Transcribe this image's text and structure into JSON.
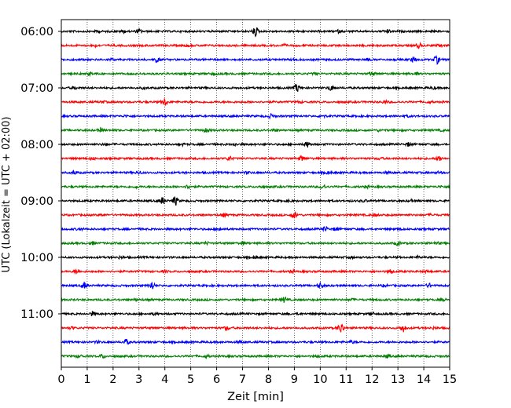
{
  "chart_data": {
    "type": "line",
    "title": "",
    "xlabel": "Zeit  [min]",
    "ylabel": "UTC (Lokalzeit = UTC + 02:00)",
    "xlim": [
      0,
      15
    ],
    "xticks": [
      0,
      1,
      2,
      3,
      4,
      5,
      6,
      7,
      8,
      9,
      10,
      11,
      12,
      13,
      14,
      15
    ],
    "xtick_labels": [
      "0",
      "1",
      "2",
      "3",
      "4",
      "5",
      "6",
      "7",
      "8",
      "9",
      "10",
      "11",
      "12",
      "13",
      "14",
      "15"
    ],
    "row_interval_min": 15,
    "first_row": "06:00",
    "ytick_labels": [
      "06:00",
      "07:00",
      "08:00",
      "09:00",
      "10:00",
      "11:00"
    ],
    "grid": {
      "x": true,
      "x_style": "dotted",
      "y": false
    },
    "color_cycle": [
      "#000000",
      "#ff0000",
      "#0000ff",
      "#008000"
    ],
    "series": [
      {
        "start": "06:00",
        "color": "#000000",
        "bursts": [
          [
            1.4,
            1.0
          ],
          [
            2.4,
            1.5
          ],
          [
            3.0,
            2.0
          ],
          [
            7.5,
            5.5
          ],
          [
            10.7,
            1.3
          ],
          [
            12.6,
            1.8
          ]
        ]
      },
      {
        "start": "06:15",
        "color": "#ff0000",
        "bursts": [
          [
            1.3,
            1.2
          ],
          [
            4.9,
            0.9
          ],
          [
            8.6,
            0.8
          ],
          [
            13.8,
            3.2
          ],
          [
            14.6,
            1.0
          ]
        ]
      },
      {
        "start": "06:30",
        "color": "#0000ff",
        "bursts": [
          [
            1.9,
            1.2
          ],
          [
            3.7,
            2.8
          ],
          [
            9.0,
            1.0
          ],
          [
            11.8,
            1.2
          ],
          [
            13.6,
            2.8
          ],
          [
            14.5,
            4.8
          ]
        ]
      },
      {
        "start": "06:45",
        "color": "#008000",
        "bursts": [
          [
            1.1,
            1.5
          ],
          [
            5.9,
            1.0
          ],
          [
            9.8,
            1.0
          ],
          [
            12.0,
            2.5
          ],
          [
            13.7,
            1.3
          ]
        ]
      },
      {
        "start": "07:00",
        "color": "#000000",
        "bursts": [
          [
            0.5,
            1.8
          ],
          [
            3.2,
            1.0
          ],
          [
            9.1,
            4.8
          ],
          [
            10.4,
            3.0
          ],
          [
            14.4,
            1.2
          ]
        ]
      },
      {
        "start": "07:15",
        "color": "#ff0000",
        "bursts": [
          [
            1.6,
            0.9
          ],
          [
            4.0,
            4.0
          ],
          [
            9.2,
            1.0
          ],
          [
            12.5,
            1.5
          ],
          [
            14.2,
            0.8
          ]
        ]
      },
      {
        "start": "07:30",
        "color": "#0000ff",
        "bursts": [
          [
            2.5,
            0.9
          ],
          [
            8.1,
            2.0
          ],
          [
            10.1,
            1.4
          ],
          [
            13.4,
            0.8
          ]
        ]
      },
      {
        "start": "07:45",
        "color": "#008000",
        "bursts": [
          [
            1.5,
            2.2
          ],
          [
            5.6,
            2.4
          ],
          [
            8.2,
            1.0
          ],
          [
            12.3,
            1.0
          ],
          [
            14.7,
            0.8
          ]
        ]
      },
      {
        "start": "08:00",
        "color": "#000000",
        "bursts": [
          [
            1.7,
            1.0
          ],
          [
            4.7,
            1.0
          ],
          [
            6.7,
            1.5
          ],
          [
            9.5,
            3.2
          ],
          [
            13.4,
            2.0
          ]
        ]
      },
      {
        "start": "08:15",
        "color": "#ff0000",
        "bursts": [
          [
            1.2,
            1.5
          ],
          [
            6.5,
            2.5
          ],
          [
            9.3,
            2.8
          ],
          [
            12.3,
            1.2
          ],
          [
            14.6,
            3.2
          ]
        ]
      },
      {
        "start": "08:30",
        "color": "#0000ff",
        "bursts": [
          [
            0.5,
            2.2
          ],
          [
            3.0,
            1.4
          ],
          [
            7.2,
            1.0
          ],
          [
            10.3,
            1.5
          ],
          [
            12.6,
            1.0
          ],
          [
            14.6,
            1.2
          ]
        ]
      },
      {
        "start": "08:45",
        "color": "#008000",
        "bursts": [
          [
            2.9,
            1.0
          ],
          [
            4.9,
            2.0
          ],
          [
            7.7,
            1.0
          ],
          [
            10.1,
            2.6
          ],
          [
            11.8,
            1.2
          ],
          [
            14.7,
            1.0
          ]
        ]
      },
      {
        "start": "09:00",
        "color": "#000000",
        "bursts": [
          [
            3.9,
            4.0
          ],
          [
            4.4,
            5.2
          ],
          [
            8.8,
            1.4
          ],
          [
            11.7,
            1.0
          ],
          [
            13.5,
            1.0
          ]
        ]
      },
      {
        "start": "09:15",
        "color": "#ff0000",
        "bursts": [
          [
            1.6,
            1.0
          ],
          [
            6.3,
            1.8
          ],
          [
            9.0,
            3.5
          ],
          [
            12.1,
            1.0
          ],
          [
            14.3,
            0.9
          ]
        ]
      },
      {
        "start": "09:30",
        "color": "#0000ff",
        "bursts": [
          [
            0.7,
            1.0
          ],
          [
            6.1,
            2.0
          ],
          [
            10.2,
            2.5
          ],
          [
            10.6,
            1.8
          ],
          [
            13.1,
            1.0
          ]
        ]
      },
      {
        "start": "09:45",
        "color": "#008000",
        "bursts": [
          [
            1.2,
            1.6
          ],
          [
            5.6,
            1.2
          ],
          [
            7.0,
            1.6
          ],
          [
            13.0,
            2.2
          ],
          [
            14.5,
            1.0
          ]
        ]
      },
      {
        "start": "10:00",
        "color": "#000000",
        "bursts": [
          [
            2.3,
            1.2
          ],
          [
            7.5,
            1.6
          ],
          [
            11.2,
            1.0
          ],
          [
            13.8,
            1.0
          ]
        ]
      },
      {
        "start": "10:15",
        "color": "#ff0000",
        "bursts": [
          [
            0.6,
            2.8
          ],
          [
            4.0,
            1.0
          ],
          [
            8.9,
            1.2
          ],
          [
            12.7,
            2.5
          ],
          [
            14.1,
            1.0
          ]
        ]
      },
      {
        "start": "10:30",
        "color": "#0000ff",
        "bursts": [
          [
            0.9,
            4.2
          ],
          [
            3.5,
            5.0
          ],
          [
            10.0,
            3.0
          ],
          [
            12.5,
            1.0
          ],
          [
            14.2,
            2.2
          ]
        ]
      },
      {
        "start": "10:45",
        "color": "#008000",
        "bursts": [
          [
            2.9,
            1.0
          ],
          [
            8.6,
            3.2
          ],
          [
            11.2,
            1.0
          ],
          [
            14.8,
            1.2
          ]
        ]
      },
      {
        "start": "11:00",
        "color": "#000000",
        "bursts": [
          [
            1.2,
            2.4
          ],
          [
            3.6,
            1.0
          ],
          [
            9.2,
            1.0
          ],
          [
            12.0,
            1.2
          ]
        ]
      },
      {
        "start": "11:15",
        "color": "#ff0000",
        "bursts": [
          [
            0.4,
            1.2
          ],
          [
            6.4,
            2.2
          ],
          [
            10.8,
            6.2
          ],
          [
            13.2,
            4.5
          ],
          [
            14.4,
            1.0
          ]
        ]
      },
      {
        "start": "11:30",
        "color": "#0000ff",
        "bursts": [
          [
            1.4,
            1.0
          ],
          [
            2.5,
            3.2
          ],
          [
            6.9,
            1.0
          ],
          [
            11.2,
            1.4
          ]
        ]
      },
      {
        "start": "11:45",
        "color": "#008000",
        "bursts": [
          [
            0.7,
            1.5
          ],
          [
            1.6,
            2.0
          ],
          [
            5.6,
            1.2
          ],
          [
            9.9,
            1.0
          ],
          [
            12.6,
            1.4
          ]
        ]
      }
    ]
  }
}
